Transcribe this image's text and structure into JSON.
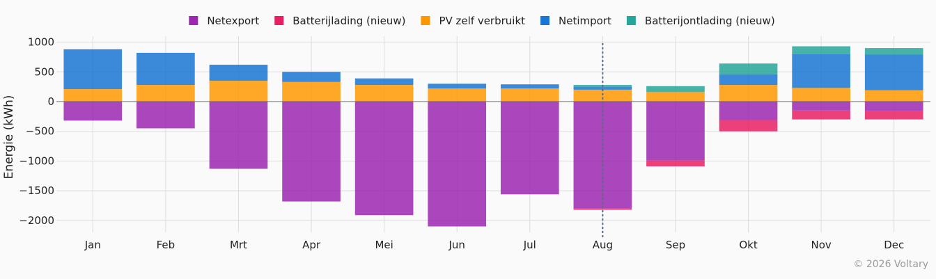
{
  "chart_data": {
    "type": "bar",
    "stacked": true,
    "categories": [
      "Jan",
      "Feb",
      "Mrt",
      "Apr",
      "Mei",
      "Jun",
      "Jul",
      "Aug",
      "Sep",
      "Okt",
      "Nov",
      "Dec"
    ],
    "ylabel": "Energie (kWh)",
    "xlabel": "",
    "ylim": [
      -2200,
      1100
    ],
    "yticks": [
      1000,
      500,
      0,
      -500,
      -1000,
      -1500,
      -2000
    ],
    "ytick_labels": [
      "1000",
      "500",
      "0",
      "−500",
      "−1000",
      "−1500",
      "−2000"
    ],
    "grid": true,
    "legend_position": "top-center",
    "marker_category": "Aug",
    "series": [
      {
        "name": "Netexport",
        "color": "#9c27b0",
        "values": [
          -320,
          -450,
          -1130,
          -1680,
          -1910,
          -2100,
          -1560,
          -1800,
          -990,
          -310,
          -150,
          -160
        ]
      },
      {
        "name": "Batterijlading (nieuw)",
        "color": "#e91e63",
        "values": [
          0,
          0,
          0,
          0,
          0,
          0,
          0,
          -20,
          -100,
          -190,
          -150,
          -140
        ]
      },
      {
        "name": "PV zelf verbruikt",
        "color": "#ff9800",
        "values": [
          210,
          280,
          350,
          330,
          280,
          220,
          220,
          200,
          160,
          280,
          230,
          190
        ]
      },
      {
        "name": "Netimport",
        "color": "#1976d2",
        "values": [
          670,
          540,
          270,
          170,
          110,
          80,
          70,
          50,
          0,
          180,
          570,
          600
        ]
      },
      {
        "name": "Batterijontlading (nieuw)",
        "color": "#26a69a",
        "values": [
          0,
          0,
          0,
          0,
          0,
          0,
          0,
          30,
          100,
          180,
          130,
          110
        ]
      }
    ]
  },
  "footer": {
    "copyright": "© 2026 Voltary"
  }
}
